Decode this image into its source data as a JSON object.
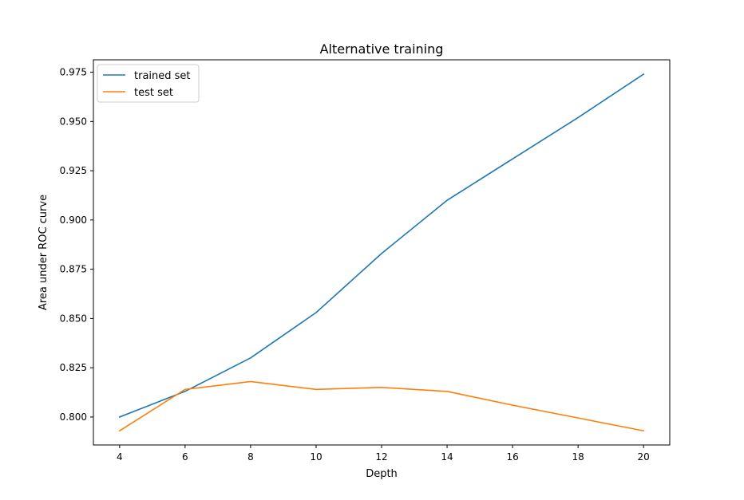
{
  "chart_data": {
    "type": "line",
    "title": "Alternative training",
    "xlabel": "Depth",
    "ylabel": "Area under ROC curve",
    "x": [
      4,
      6,
      8,
      10,
      12,
      14,
      16,
      18,
      20
    ],
    "xlim": [
      3.2,
      20.8
    ],
    "ylim": [
      0.7858,
      0.9813
    ],
    "xticks": [
      4,
      6,
      8,
      10,
      12,
      14,
      16,
      18,
      20
    ],
    "xtick_labels": [
      "4",
      "6",
      "8",
      "10",
      "12",
      "14",
      "16",
      "18",
      "20"
    ],
    "yticks": [
      0.8,
      0.825,
      0.85,
      0.875,
      0.9,
      0.925,
      0.95,
      0.975
    ],
    "ytick_labels": [
      "0.800",
      "0.825",
      "0.850",
      "0.875",
      "0.900",
      "0.925",
      "0.950",
      "0.975"
    ],
    "grid": false,
    "legend_position": "top-left",
    "series": [
      {
        "name": "trained set",
        "color": "#1f77b4",
        "values": [
          0.8,
          0.813,
          0.83,
          0.853,
          0.883,
          0.91,
          0.931,
          0.952,
          0.974
        ]
      },
      {
        "name": "test set",
        "color": "#ff7f0e",
        "values": [
          0.793,
          0.814,
          0.818,
          0.814,
          0.815,
          0.813,
          0.806,
          0.7995,
          0.793
        ]
      }
    ]
  }
}
